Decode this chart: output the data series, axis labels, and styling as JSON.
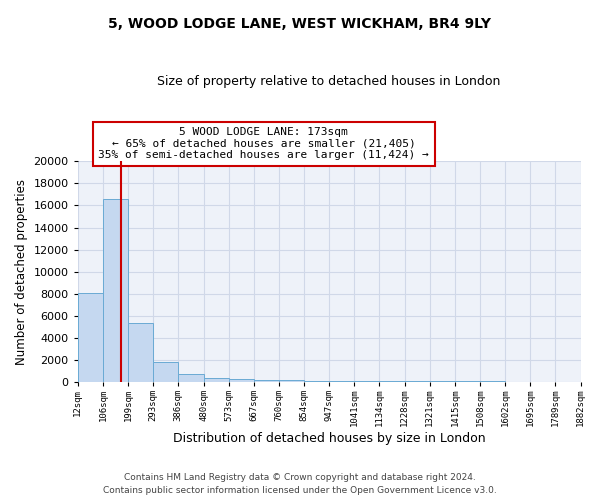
{
  "title1": "5, WOOD LODGE LANE, WEST WICKHAM, BR4 9LY",
  "title2": "Size of property relative to detached houses in London",
  "xlabel": "Distribution of detached houses by size in London",
  "ylabel": "Number of detached properties",
  "bar_heights": [
    8100,
    16600,
    5300,
    1800,
    700,
    350,
    250,
    170,
    130,
    100,
    90,
    80,
    70,
    60,
    50,
    40,
    35,
    25,
    20,
    15
  ],
  "bin_edges": [
    12,
    106,
    199,
    293,
    386,
    480,
    573,
    667,
    760,
    854,
    947,
    1041,
    1134,
    1228,
    1321,
    1415,
    1508,
    1602,
    1695,
    1789,
    1882
  ],
  "x_tick_labels": [
    "12sqm",
    "106sqm",
    "199sqm",
    "293sqm",
    "386sqm",
    "480sqm",
    "573sqm",
    "667sqm",
    "760sqm",
    "854sqm",
    "947sqm",
    "1041sqm",
    "1134sqm",
    "1228sqm",
    "1321sqm",
    "1415sqm",
    "1508sqm",
    "1602sqm",
    "1695sqm",
    "1789sqm",
    "1882sqm"
  ],
  "bar_color": "#c5d8f0",
  "bar_edge_color": "#6aaad4",
  "property_size": 173,
  "vline_color": "#cc0000",
  "annotation_line1": "5 WOOD LODGE LANE: 173sqm",
  "annotation_line2": "← 65% of detached houses are smaller (21,405)",
  "annotation_line3": "35% of semi-detached houses are larger (11,424) →",
  "annotation_box_color": "#cc0000",
  "background_color": "#eef2f9",
  "grid_color": "#d0d8e8",
  "footer_text": "Contains HM Land Registry data © Crown copyright and database right 2024.\nContains public sector information licensed under the Open Government Licence v3.0.",
  "ylim": [
    0,
    20000
  ],
  "yticks": [
    0,
    2000,
    4000,
    6000,
    8000,
    10000,
    12000,
    14000,
    16000,
    18000,
    20000
  ]
}
